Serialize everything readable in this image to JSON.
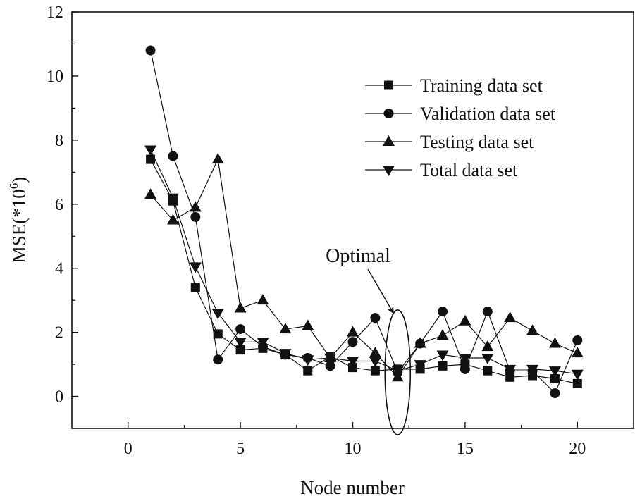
{
  "chart_data": {
    "type": "line",
    "title": "",
    "xlabel": "Node number",
    "ylabel_main": "MSE(*10",
    "ylabel_sup": "6",
    "ylabel_close": ")",
    "xlim": [
      -2.5,
      22.5
    ],
    "ylim": [
      -1,
      12
    ],
    "xticks": [
      0,
      5,
      10,
      15,
      20
    ],
    "yticks": [
      0,
      2,
      4,
      6,
      8,
      10,
      12
    ],
    "x": [
      1,
      2,
      3,
      4,
      5,
      6,
      7,
      8,
      9,
      10,
      11,
      12,
      13,
      14,
      15,
      16,
      17,
      18,
      19,
      20
    ],
    "series": [
      {
        "name": "Training data set",
        "marker": "square",
        "values": [
          7.4,
          6.1,
          3.4,
          1.95,
          1.45,
          1.5,
          1.3,
          0.8,
          1.25,
          0.9,
          0.8,
          0.85,
          0.85,
          0.95,
          1.0,
          0.8,
          0.6,
          0.65,
          0.55,
          0.4
        ]
      },
      {
        "name": "Validation data set",
        "marker": "circle",
        "values": [
          10.8,
          7.5,
          5.6,
          1.15,
          2.1,
          1.55,
          1.3,
          1.2,
          0.95,
          1.7,
          2.45,
          0.75,
          1.65,
          2.65,
          0.85,
          2.65,
          0.8,
          0.8,
          0.1,
          1.75
        ]
      },
      {
        "name": "Testing data set",
        "marker": "triangle-up",
        "values": [
          6.3,
          5.5,
          5.9,
          7.4,
          2.75,
          3.0,
          2.1,
          2.2,
          1.2,
          2.0,
          1.35,
          0.6,
          1.65,
          1.9,
          2.35,
          1.55,
          2.45,
          2.05,
          1.65,
          1.35
        ]
      },
      {
        "name": "Total data set",
        "marker": "triangle-down",
        "values": [
          7.7,
          6.2,
          4.05,
          2.6,
          1.7,
          1.7,
          1.35,
          1.15,
          1.2,
          1.1,
          1.1,
          0.8,
          1.0,
          1.3,
          1.2,
          1.2,
          0.85,
          0.85,
          0.8,
          0.7
        ]
      }
    ],
    "annotation": {
      "text": "Optimal",
      "target_x": 12
    },
    "legend_position": "top-right",
    "grid": false
  }
}
